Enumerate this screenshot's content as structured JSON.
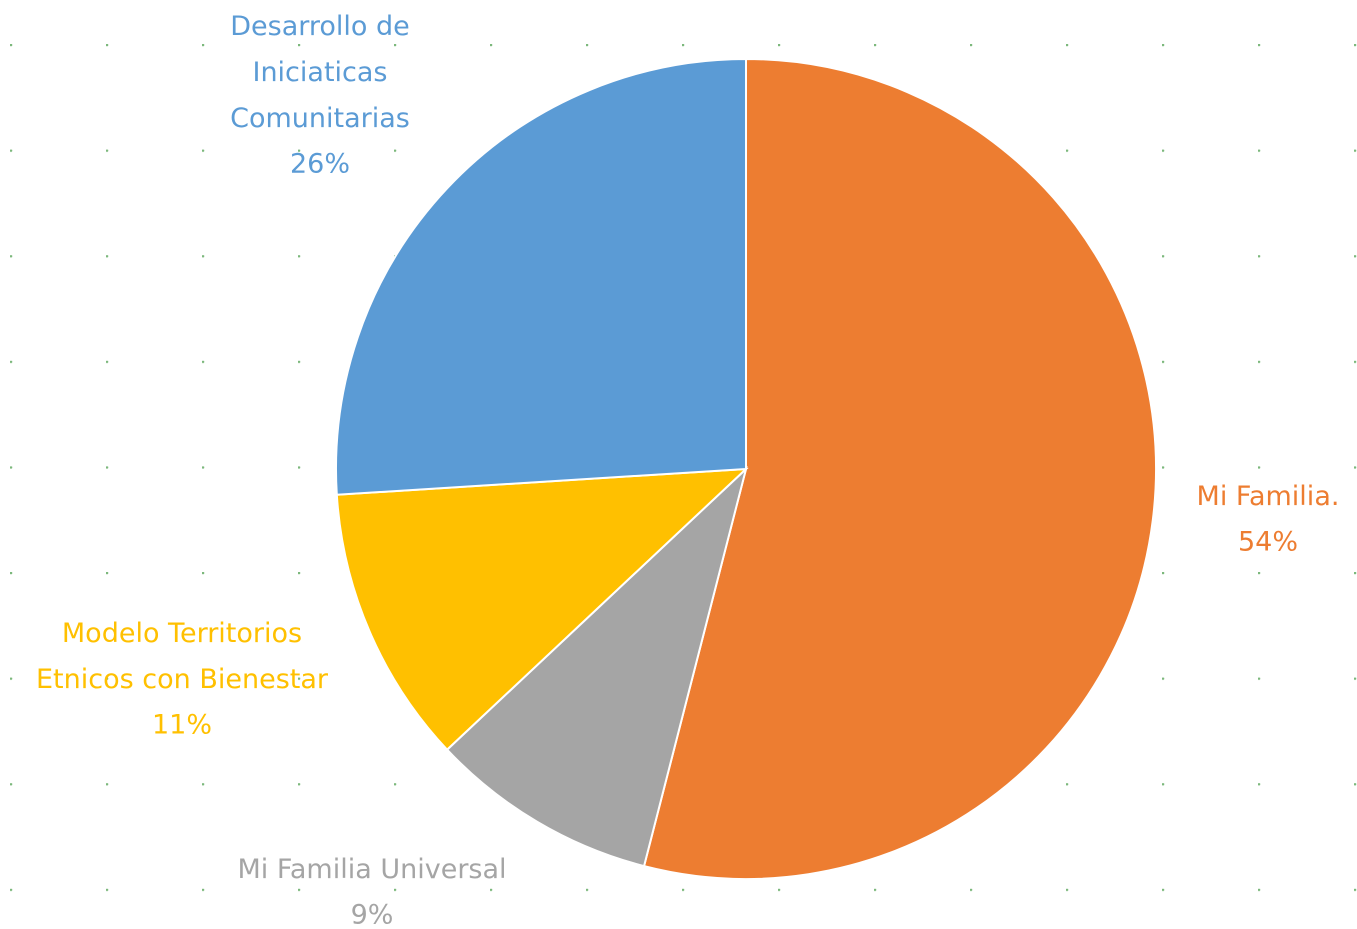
{
  "chart_data": {
    "type": "pie",
    "categories": [
      "Mi Familia.",
      "Mi Familia Universal",
      "Modelo Territorios Etnicos con Bienestar",
      "Desarrollo de Iniciaticas Comunitarias"
    ],
    "values": [
      54,
      9,
      11,
      26
    ],
    "value_labels": [
      "54%",
      "9%",
      "11%",
      "26%"
    ],
    "colors": [
      "#ed7d31",
      "#a5a5a5",
      "#ffc000",
      "#5b9bd5"
    ]
  }
}
